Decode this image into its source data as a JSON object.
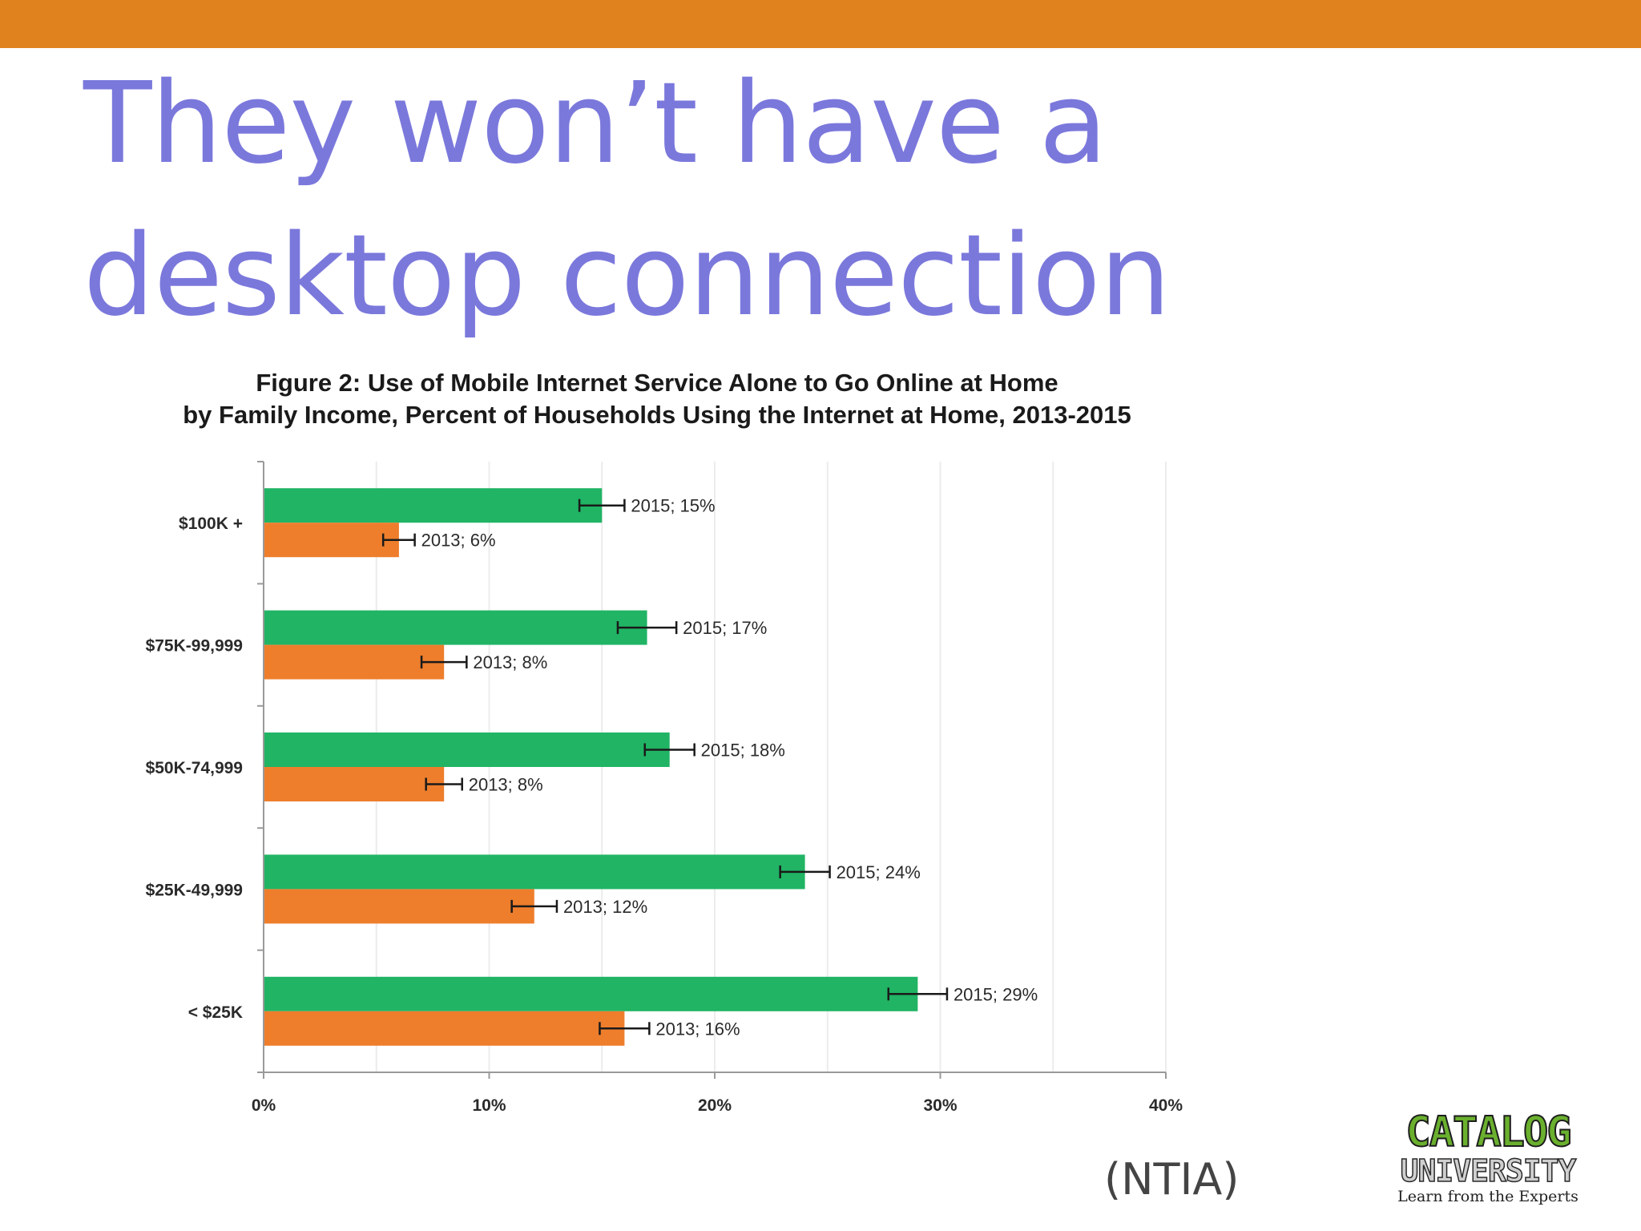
{
  "slide": {
    "title": "They won’t have a desktop connection",
    "source": "(NTIA)",
    "accent_color": "#e0821e",
    "title_color": "#7b78dc"
  },
  "logo": {
    "line1": "CATALOG",
    "line2": "UNIVERSITY",
    "line3": "Learn from the Experts"
  },
  "chart_data": {
    "type": "bar",
    "orientation": "horizontal",
    "title": "Figure 2: Use of Mobile Internet Service Alone to Go Online at Home",
    "subtitle": "by Family Income, Percent of Households Using the Internet at Home, 2013-2015",
    "categories": [
      "$100K +",
      "$75K-99,999",
      "$50K-74,999",
      "$25K-49,999",
      "< $25K"
    ],
    "series": [
      {
        "name": "2015",
        "color": "#20b464",
        "values": [
          15,
          17,
          18,
          24,
          29
        ],
        "labels": [
          "2015; 15%",
          "2015; 17%",
          "2015; 18%",
          "2015; 24%",
          "2015; 29%"
        ],
        "error": [
          1,
          1.3,
          1.1,
          1.1,
          1.3
        ]
      },
      {
        "name": "2013",
        "color": "#ee7e2c",
        "values": [
          6,
          8,
          8,
          12,
          16
        ],
        "labels": [
          "2013; 6%",
          "2013; 8%",
          "2013; 8%",
          "2013; 12%",
          "2013; 16%"
        ],
        "error": [
          0.7,
          1,
          0.8,
          1,
          1.1
        ]
      }
    ],
    "xlim": [
      0,
      40
    ],
    "xticks": [
      "0%",
      "10%",
      "20%",
      "30%",
      "40%"
    ],
    "grid": true,
    "legend": "none"
  }
}
